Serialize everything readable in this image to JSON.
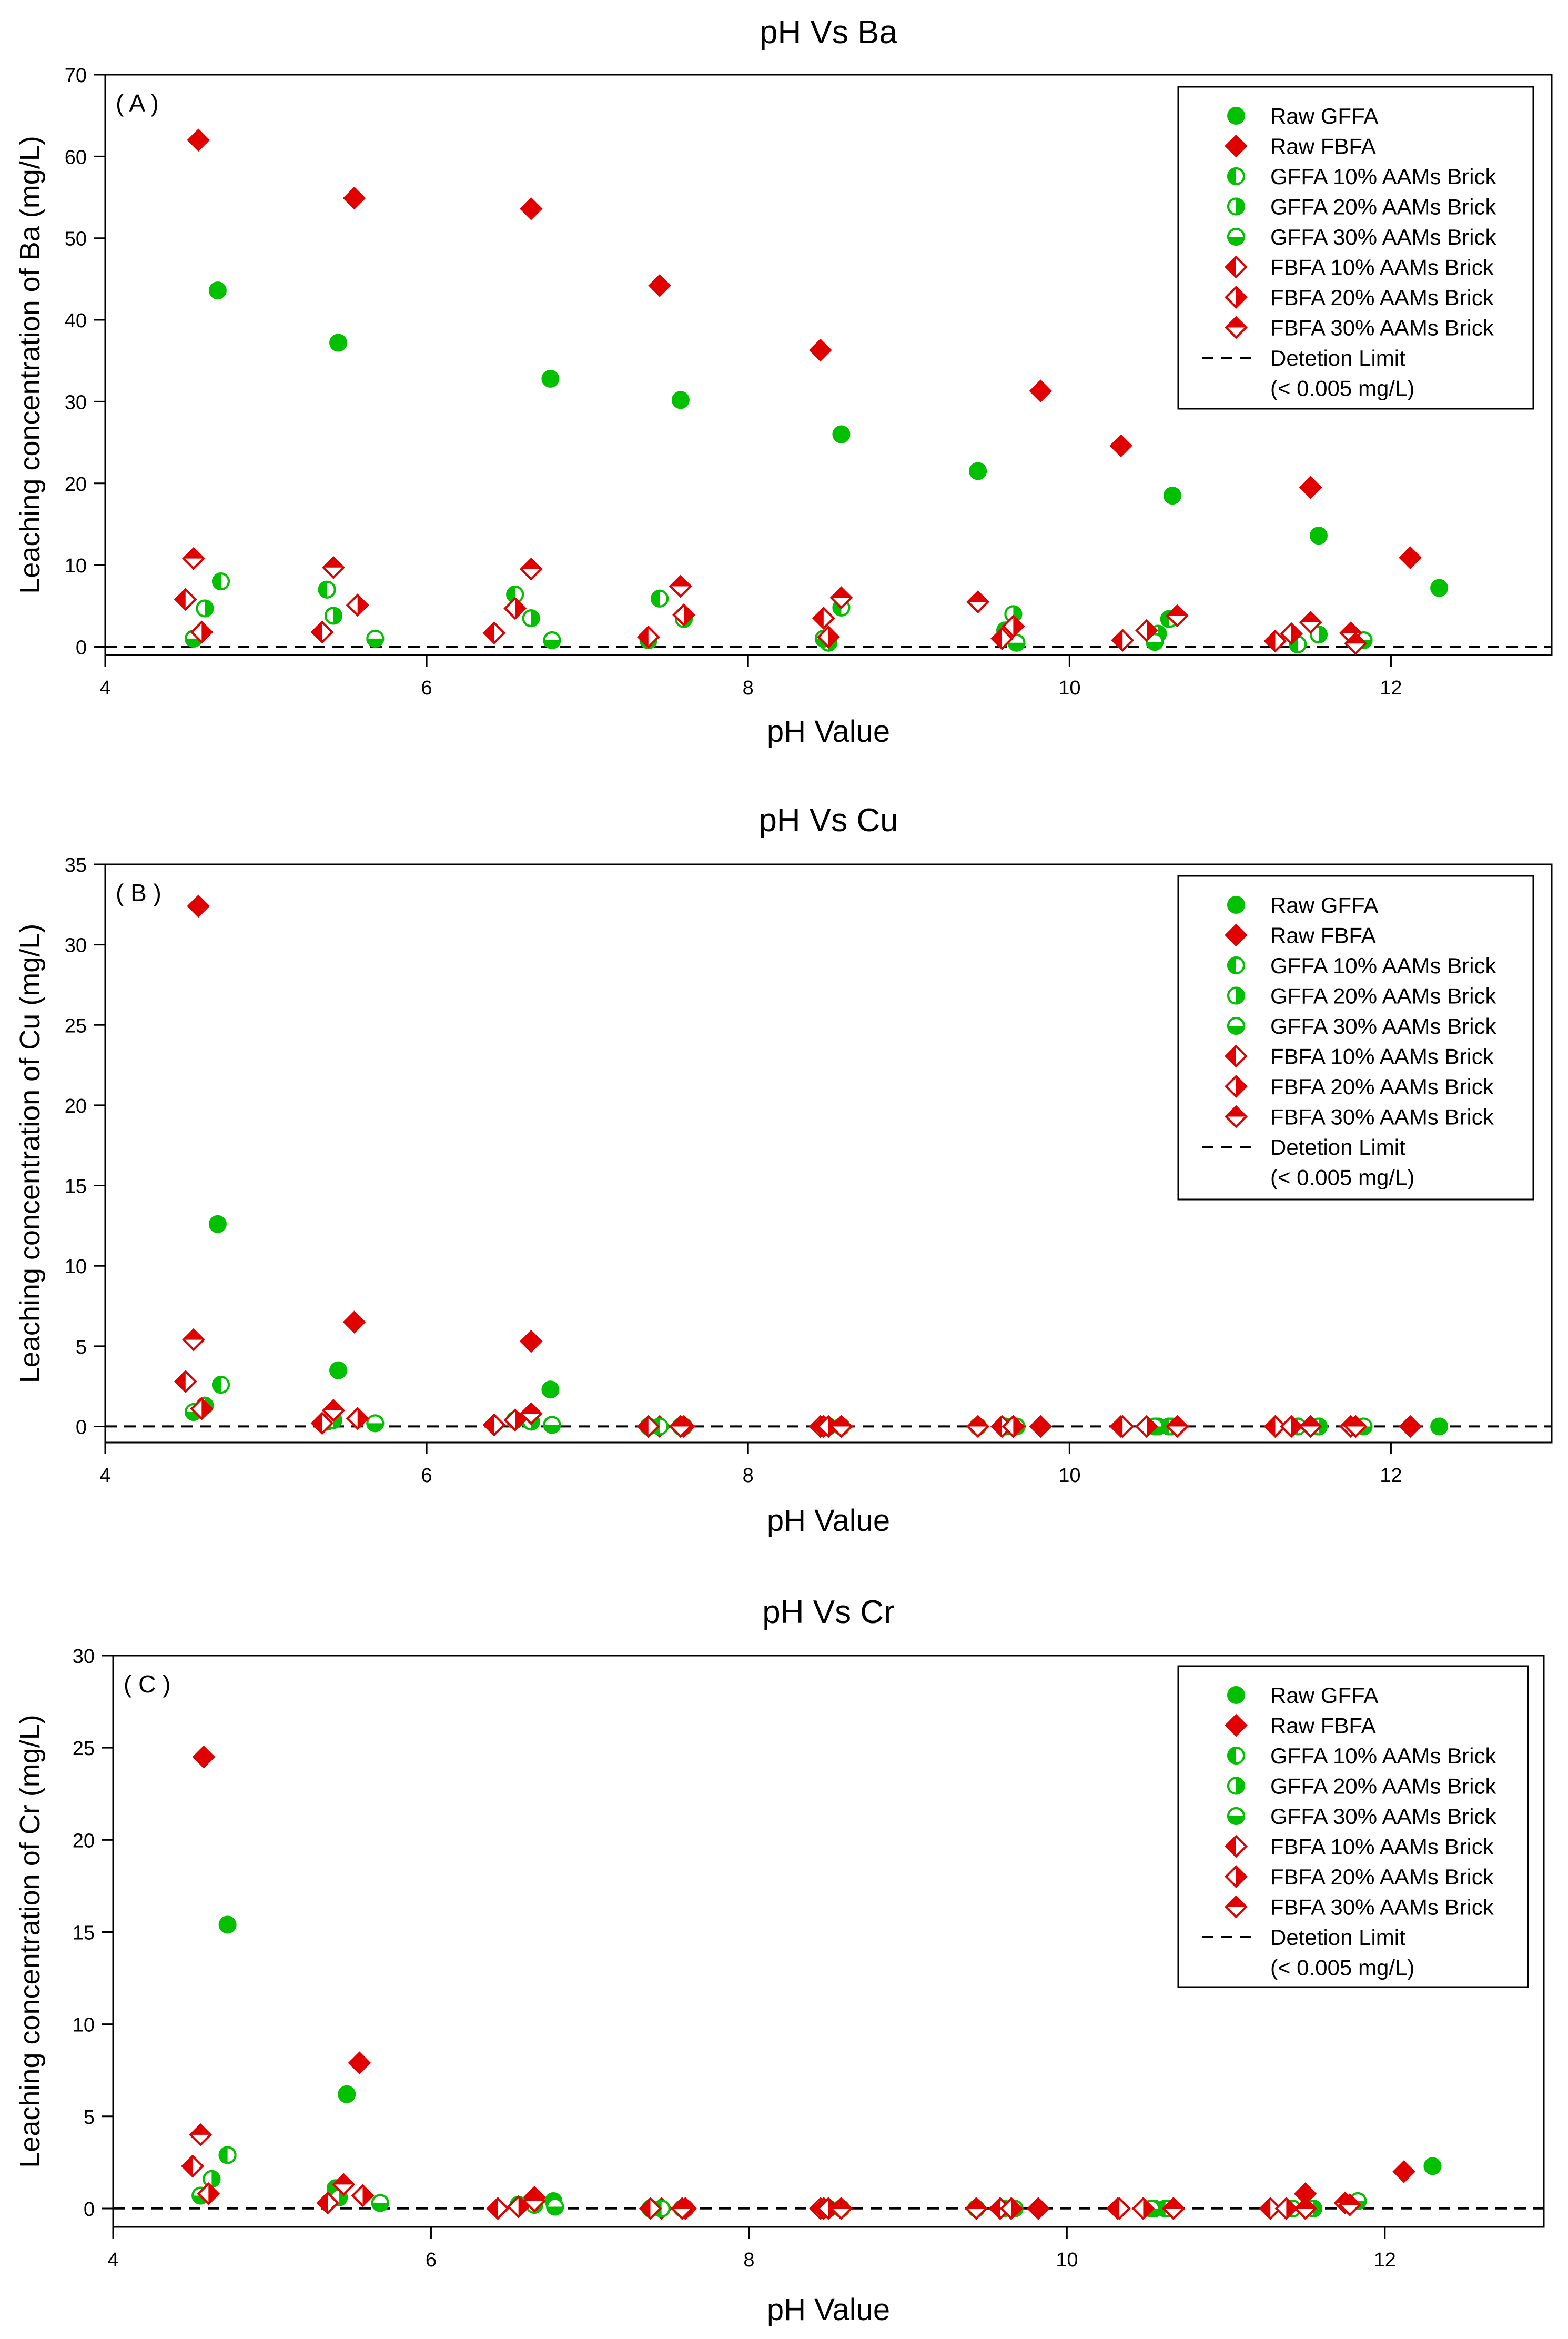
{
  "colors": {
    "green": "#00c000",
    "red": "#e00000",
    "axis": "#000000",
    "background": "#ffffff"
  },
  "chart_data": [
    {
      "type": "scatter",
      "panel_label": "( A )",
      "title": "pH Vs Ba",
      "xlabel": "pH Value",
      "ylabel": "Leaching concentration of Ba (mg/L)",
      "xlim": [
        4,
        13
      ],
      "ylim": [
        -1,
        70
      ],
      "xticks": [
        4,
        6,
        8,
        10,
        12
      ],
      "yticks": [
        0,
        10,
        20,
        30,
        40,
        50,
        60,
        70
      ],
      "grid": false,
      "legend_position": "top-right",
      "detection_limit": {
        "value": 0.005,
        "label": "Detetion Limit",
        "sublabel": "(< 0.005 mg/L)"
      },
      "series": [
        {
          "name": "Raw GFFA",
          "color": "green",
          "marker": "circle",
          "fill": "full",
          "x": [
            4.7,
            5.45,
            6.77,
            7.58,
            8.58,
            9.43,
            10.64,
            11.55,
            12.3
          ],
          "y": [
            43.6,
            37.2,
            32.8,
            30.2,
            26.0,
            21.5,
            18.5,
            13.6,
            7.2
          ]
        },
        {
          "name": "Raw FBFA",
          "color": "red",
          "marker": "diamond",
          "fill": "full",
          "x": [
            4.58,
            5.55,
            6.65,
            7.45,
            8.45,
            9.82,
            10.32,
            11.5,
            12.12
          ],
          "y": [
            62.0,
            54.9,
            53.6,
            44.2,
            36.3,
            31.3,
            24.6,
            19.5,
            10.9
          ]
        },
        {
          "name": "GFFA 10% AAMs Brick",
          "color": "green",
          "marker": "circle",
          "fill": "left",
          "x": [
            4.72,
            5.38,
            6.55,
            7.45,
            8.58,
            9.6,
            10.62,
            11.42
          ],
          "y": [
            8.0,
            7.0,
            6.4,
            5.9,
            4.8,
            2.0,
            3.4,
            0.3
          ]
        },
        {
          "name": "GFFA 20% AAMs Brick",
          "color": "green",
          "marker": "circle",
          "fill": "right",
          "x": [
            4.62,
            5.42,
            6.65,
            7.6,
            8.5,
            9.65,
            10.55,
            11.55
          ],
          "y": [
            4.7,
            3.8,
            3.5,
            3.4,
            0.5,
            4.0,
            1.6,
            1.5
          ]
        },
        {
          "name": "GFFA 30% AAMs Brick",
          "color": "green",
          "marker": "circle",
          "fill": "bottom",
          "x": [
            4.55,
            5.68,
            6.78,
            7.38,
            8.47,
            9.67,
            10.53,
            11.83
          ],
          "y": [
            1.0,
            1.0,
            0.8,
            0.8,
            1.0,
            0.5,
            0.6,
            0.8
          ]
        },
        {
          "name": "FBFA 10% AAMs Brick",
          "color": "red",
          "marker": "diamond",
          "fill": "left",
          "x": [
            4.5,
            5.35,
            6.42,
            7.38,
            8.47,
            9.58,
            10.33,
            11.28
          ],
          "y": [
            5.8,
            1.8,
            1.7,
            1.2,
            3.5,
            1.0,
            0.8,
            0.7
          ]
        },
        {
          "name": "FBFA 20% AAMs Brick",
          "color": "red",
          "marker": "diamond",
          "fill": "right",
          "x": [
            4.6,
            5.57,
            6.55,
            7.6,
            8.5,
            9.65,
            10.48,
            11.38
          ],
          "y": [
            1.8,
            5.1,
            4.7,
            3.9,
            1.2,
            2.5,
            2.0,
            1.6
          ]
        },
        {
          "name": "FBFA 30% AAMs Brick",
          "color": "red",
          "marker": "diamond",
          "fill": "top",
          "x": [
            4.55,
            5.42,
            6.65,
            7.58,
            8.58,
            9.43,
            10.67,
            11.5,
            11.75,
            11.78
          ],
          "y": [
            10.8,
            9.7,
            9.5,
            7.4,
            6.0,
            5.5,
            3.8,
            3.0,
            1.7,
            0.4
          ]
        }
      ]
    },
    {
      "type": "scatter",
      "panel_label": "( B )",
      "title": "pH Vs Cu",
      "xlabel": "pH Value",
      "ylabel": "Leaching concentration of Cu (mg/L)",
      "xlim": [
        4,
        13
      ],
      "ylim": [
        -1,
        35
      ],
      "xticks": [
        4,
        6,
        8,
        10,
        12
      ],
      "yticks": [
        0,
        5,
        10,
        15,
        20,
        25,
        30,
        35
      ],
      "grid": false,
      "legend_position": "top-right",
      "detection_limit": {
        "value": 0.005,
        "label": "Detetion Limit",
        "sublabel": "(< 0.005 mg/L)"
      },
      "series": [
        {
          "name": "Raw GFFA",
          "color": "green",
          "marker": "circle",
          "fill": "full",
          "x": [
            4.7,
            5.45,
            6.77,
            7.58,
            8.58,
            9.43,
            10.64,
            11.55,
            12.3
          ],
          "y": [
            12.6,
            3.5,
            2.3,
            0.0,
            0.0,
            0.0,
            0.0,
            0.0,
            0.0
          ]
        },
        {
          "name": "Raw FBFA",
          "color": "red",
          "marker": "diamond",
          "fill": "full",
          "x": [
            4.58,
            5.55,
            6.65,
            7.45,
            8.45,
            9.82,
            10.32,
            11.5,
            12.12
          ],
          "y": [
            32.4,
            6.5,
            5.3,
            0.0,
            0.0,
            0.0,
            0.0,
            0.0,
            0.0
          ]
        },
        {
          "name": "GFFA 10% AAMs Brick",
          "color": "green",
          "marker": "circle",
          "fill": "left",
          "x": [
            4.72,
            5.38,
            6.55,
            7.45,
            8.58,
            9.6,
            10.62,
            11.42
          ],
          "y": [
            2.6,
            0.3,
            0.4,
            0.0,
            0.0,
            0.0,
            0.0,
            0.0
          ]
        },
        {
          "name": "GFFA 20% AAMs Brick",
          "color": "green",
          "marker": "circle",
          "fill": "right",
          "x": [
            4.62,
            5.42,
            6.65,
            7.6,
            8.5,
            9.65,
            10.55,
            11.55
          ],
          "y": [
            1.3,
            0.4,
            0.3,
            0.0,
            0.0,
            0.0,
            0.0,
            0.0
          ]
        },
        {
          "name": "GFFA 30% AAMs Brick",
          "color": "green",
          "marker": "circle",
          "fill": "bottom",
          "x": [
            4.55,
            5.68,
            6.78,
            7.38,
            8.47,
            9.67,
            10.53,
            11.83
          ],
          "y": [
            0.9,
            0.2,
            0.1,
            0.0,
            0.0,
            0.0,
            0.0,
            0.0
          ]
        },
        {
          "name": "FBFA 10% AAMs Brick",
          "color": "red",
          "marker": "diamond",
          "fill": "left",
          "x": [
            4.5,
            5.35,
            6.42,
            7.38,
            8.47,
            9.58,
            10.33,
            11.28
          ],
          "y": [
            2.8,
            0.2,
            0.1,
            0.0,
            0.0,
            0.0,
            0.0,
            0.0
          ]
        },
        {
          "name": "FBFA 20% AAMs Brick",
          "color": "red",
          "marker": "diamond",
          "fill": "right",
          "x": [
            4.6,
            5.57,
            6.55,
            7.6,
            8.5,
            9.65,
            10.48,
            11.38
          ],
          "y": [
            1.1,
            0.5,
            0.4,
            0.0,
            0.0,
            0.0,
            0.0,
            0.0
          ]
        },
        {
          "name": "FBFA 30% AAMs Brick",
          "color": "red",
          "marker": "diamond",
          "fill": "top",
          "x": [
            4.55,
            5.42,
            6.65,
            7.58,
            8.58,
            9.43,
            10.67,
            11.5,
            11.75,
            11.78
          ],
          "y": [
            5.4,
            1.0,
            0.8,
            0.0,
            0.0,
            0.0,
            0.0,
            0.0,
            0.0,
            0.0
          ]
        }
      ]
    },
    {
      "type": "scatter",
      "panel_label": "( C )",
      "title": "pH Vs Cr",
      "xlabel": "pH Value",
      "ylabel": "Leaching concentration of Cr (mg/L)",
      "xlim": [
        4,
        13
      ],
      "ylim": [
        -1,
        30
      ],
      "xticks": [
        4,
        6,
        8,
        10,
        12
      ],
      "yticks": [
        0,
        5,
        10,
        15,
        20,
        25,
        30
      ],
      "grid": false,
      "legend_position": "top-right",
      "detection_limit": {
        "value": 0.005,
        "label": "Detetion Limit",
        "sublabel": "(< 0.005 mg/L)"
      },
      "series": [
        {
          "name": "Raw GFFA",
          "color": "green",
          "marker": "circle",
          "fill": "full",
          "x": [
            4.72,
            5.47,
            6.77,
            7.58,
            8.58,
            9.43,
            10.64,
            11.55,
            12.3
          ],
          "y": [
            15.4,
            6.2,
            0.4,
            0.0,
            0.0,
            0.0,
            0.0,
            0.0,
            2.3
          ]
        },
        {
          "name": "Raw FBFA",
          "color": "red",
          "marker": "diamond",
          "fill": "full",
          "x": [
            4.57,
            5.55,
            6.65,
            7.45,
            8.45,
            9.82,
            10.32,
            11.5,
            12.12
          ],
          "y": [
            24.5,
            7.9,
            0.6,
            0.0,
            0.0,
            0.0,
            0.0,
            0.8,
            2.0
          ]
        },
        {
          "name": "GFFA 10% AAMs Brick",
          "color": "green",
          "marker": "circle",
          "fill": "left",
          "x": [
            4.72,
            5.4,
            6.55,
            7.45,
            8.58,
            9.6,
            10.62,
            11.42
          ],
          "y": [
            2.9,
            1.1,
            0.2,
            0.0,
            0.0,
            0.0,
            0.0,
            0.0
          ]
        },
        {
          "name": "GFFA 20% AAMs Brick",
          "color": "green",
          "marker": "circle",
          "fill": "right",
          "x": [
            4.62,
            5.42,
            6.65,
            7.6,
            8.5,
            9.65,
            10.55,
            11.55
          ],
          "y": [
            1.6,
            0.6,
            0.2,
            0.0,
            0.0,
            0.0,
            0.0,
            0.0
          ]
        },
        {
          "name": "GFFA 30% AAMs Brick",
          "color": "green",
          "marker": "circle",
          "fill": "bottom",
          "x": [
            4.55,
            5.68,
            6.78,
            7.38,
            8.47,
            9.67,
            10.53,
            11.83
          ],
          "y": [
            0.7,
            0.3,
            0.1,
            0.0,
            0.0,
            0.0,
            0.0,
            0.4
          ]
        },
        {
          "name": "FBFA 10% AAMs Brick",
          "color": "red",
          "marker": "diamond",
          "fill": "left",
          "x": [
            4.5,
            5.35,
            6.42,
            7.38,
            8.47,
            9.58,
            10.33,
            11.28
          ],
          "y": [
            2.3,
            0.3,
            0.0,
            0.0,
            0.0,
            0.0,
            0.0,
            0.0
          ]
        },
        {
          "name": "FBFA 20% AAMs Brick",
          "color": "red",
          "marker": "diamond",
          "fill": "right",
          "x": [
            4.6,
            5.57,
            6.55,
            7.6,
            8.5,
            9.65,
            10.48,
            11.38
          ],
          "y": [
            0.8,
            0.7,
            0.1,
            0.0,
            0.0,
            0.0,
            0.0,
            0.0
          ]
        },
        {
          "name": "FBFA 30% AAMs Brick",
          "color": "red",
          "marker": "diamond",
          "fill": "top",
          "x": [
            4.55,
            5.45,
            6.65,
            7.58,
            8.58,
            9.43,
            10.67,
            11.5,
            11.75,
            11.78
          ],
          "y": [
            4.0,
            1.3,
            0.4,
            0.0,
            0.0,
            0.0,
            0.0,
            0.0,
            0.3,
            0.2
          ]
        }
      ]
    }
  ]
}
